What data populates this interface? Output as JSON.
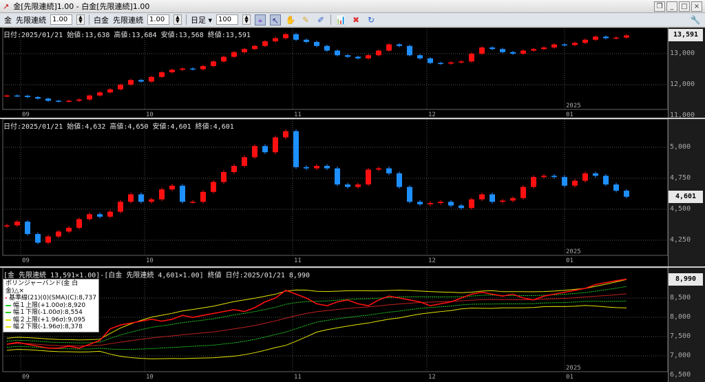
{
  "window": {
    "title": "金[先限連続]1.00 - 白金[先限連続]1.00",
    "buttons": [
      "restore",
      "minimize",
      "maximize",
      "close"
    ]
  },
  "toolbar": {
    "sym1": "金",
    "contract1": "先限連続",
    "mult1": "1.00",
    "sym2": "白金",
    "contract2": "先限連続",
    "mult2": "1.00",
    "period": "日足",
    "count": "100"
  },
  "colors": {
    "up": "#ff1010",
    "down": "#1e8fff",
    "grid": "#555555",
    "basis": "#ff2020",
    "band1": "#22cc22",
    "band2": "#e6e600",
    "ratio": "#ff1010"
  },
  "pane1": {
    "header": "日付:2025/01/21 始値:13,638 高値:13,684 安値:13,568 終値:13,591",
    "last": "13,591",
    "ticks": [
      "13,000",
      "12,000",
      "11,000"
    ]
  },
  "pane2": {
    "header": "日付:2025/01/21 始値:4,632 高値:4,650 安値:4,601 終値:4,601",
    "last": "4,601",
    "ticks": [
      "5,000",
      "4,750",
      "4,500",
      "4,250"
    ]
  },
  "pane3": {
    "header": "[金 先限連続 13,591×1.00]-[白金 先限連続 4,601×1.00] 終値 日付:2025/01/21 8,990",
    "last": "8,990",
    "ticks": [
      "8,500",
      "8,000",
      "7,500",
      "7,000",
      "6,500"
    ],
    "legend": {
      "title": "ボリンジャーバンド(金 白金)△×",
      "items": [
        {
          "label": "基準線(21)(0)(SMA)(C):8,737",
          "color": "#ff4040"
        },
        {
          "label": "幅１上限(+1.00σ):8,920",
          "color": "#22cc22"
        },
        {
          "label": "幅１下限(-1.00σ):8,554",
          "color": "#22cc22"
        },
        {
          "label": "幅２上限(+1.96σ):9,095",
          "color": "#e6e600"
        },
        {
          "label": "幅２下限(-1.96σ):8,378",
          "color": "#e6e600"
        }
      ]
    }
  },
  "xaxis": {
    "months": [
      "09",
      "10",
      "11",
      "12",
      "01"
    ],
    "year": "2025"
  },
  "chart_data": [
    {
      "type": "candlestick",
      "name": "金",
      "close": [
        11650,
        11640,
        11600,
        11550,
        11480,
        11460,
        11480,
        11520,
        11650,
        11750,
        11850,
        12000,
        12150,
        12100,
        12250,
        12400,
        12480,
        12520,
        12500,
        12600,
        12750,
        12900,
        13050,
        13150,
        13250,
        13400,
        13500,
        13630,
        13450,
        13380,
        13250,
        13100,
        12950,
        12900,
        12850,
        12950,
        13100,
        13300,
        13250,
        12950,
        12850,
        12700,
        12680,
        12720,
        12750,
        13000,
        13200,
        13150,
        13050,
        13000,
        13100,
        13150,
        13200,
        13300,
        13280,
        13350,
        13450,
        13550,
        13500,
        13520,
        13591
      ]
    },
    {
      "type": "candlestick",
      "name": "白金",
      "close": [
        4370,
        4400,
        4300,
        4230,
        4280,
        4320,
        4350,
        4420,
        4460,
        4440,
        4480,
        4560,
        4620,
        4560,
        4580,
        4660,
        4690,
        4560,
        4560,
        4640,
        4720,
        4800,
        4850,
        4920,
        5010,
        4960,
        5080,
        5130,
        4840,
        4830,
        4850,
        4830,
        4700,
        4680,
        4700,
        4820,
        4830,
        4790,
        4680,
        4560,
        4540,
        4550,
        4560,
        4530,
        4510,
        4580,
        4620,
        4560,
        4570,
        4590,
        4680,
        4760,
        4770,
        4760,
        4690,
        4730,
        4790,
        4770,
        4700,
        4650,
        4601
      ]
    },
    {
      "type": "line",
      "name": "ratio",
      "values": [
        7300,
        7350,
        7300,
        7250,
        7200,
        7200,
        7250,
        7200,
        7300,
        7400,
        7700,
        7800,
        7850,
        7900,
        7950,
        7900,
        7950,
        8050,
        8000,
        8050,
        8100,
        8150,
        8200,
        8150,
        8250,
        8400,
        8500,
        8700,
        8600,
        8500,
        8350,
        8300,
        8400,
        8450,
        8350,
        8300,
        8450,
        8550,
        8500,
        8450,
        8400,
        8300,
        8350,
        8400,
        8500,
        8600,
        8650,
        8600,
        8550,
        8600,
        8500,
        8450,
        8550,
        8600,
        8650,
        8700,
        8750,
        8850,
        8900,
        8950,
        8990
      ]
    }
  ]
}
